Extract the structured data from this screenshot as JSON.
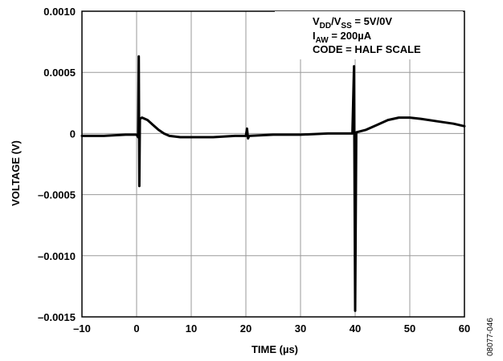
{
  "chart_data": {
    "type": "line",
    "title": "",
    "xlabel": "TIME (µs)",
    "ylabel": "VOLTAGE (V)",
    "xlim": [
      -10,
      60
    ],
    "ylim": [
      -0.0015,
      0.001
    ],
    "x_ticks": [
      -10,
      0,
      10,
      20,
      30,
      40,
      50,
      60
    ],
    "x_tick_labels": [
      "–10",
      "0",
      "10",
      "20",
      "30",
      "40",
      "50",
      "60"
    ],
    "y_ticks": [
      0.001,
      0.0005,
      0,
      -0.0005,
      -0.001,
      -0.0015
    ],
    "y_tick_labels": [
      "0.0010",
      "0.0005",
      "0",
      "–0.0005",
      "–0.0010",
      "–0.0015"
    ],
    "grid": true,
    "annotation": {
      "line1": {
        "v": "V",
        "sub1": "DD",
        "mid": "/V",
        "sub2": "SS",
        "rest": " = 5V/0V"
      },
      "line2": {
        "i": "I",
        "sub": "AW",
        "rest": " = 200µA"
      },
      "line3": "CODE = HALF SCALE"
    },
    "figure_id": "08077-046",
    "series": [
      {
        "color": "#000000",
        "points": [
          [
            -10,
            -2e-05
          ],
          [
            -6,
            -2e-05
          ],
          [
            -2,
            -1e-05
          ],
          [
            0,
            -1e-05
          ],
          [
            0.3,
            -3e-05
          ],
          [
            0.4,
            0.00063
          ],
          [
            0.5,
            -0.00043
          ],
          [
            0.6,
            0.00012
          ],
          [
            1,
            0.00013
          ],
          [
            2,
            0.00011
          ],
          [
            3,
            7e-05
          ],
          [
            4,
            3e-05
          ],
          [
            5,
            0.0
          ],
          [
            6,
            -2e-05
          ],
          [
            8,
            -3e-05
          ],
          [
            10,
            -3e-05
          ],
          [
            14,
            -3e-05
          ],
          [
            18,
            -2e-05
          ],
          [
            20,
            -2e-05
          ],
          [
            20.2,
            4e-05
          ],
          [
            20.4,
            -4e-05
          ],
          [
            20.6,
            -2e-05
          ],
          [
            25,
            -1e-05
          ],
          [
            30,
            -1e-05
          ],
          [
            35,
            0.0
          ],
          [
            39.5,
            0.0
          ],
          [
            39.8,
            0.00055
          ],
          [
            40,
            -0.00145
          ],
          [
            40.2,
            1e-05
          ],
          [
            42,
            3e-05
          ],
          [
            44,
            7e-05
          ],
          [
            46,
            0.00011
          ],
          [
            48,
            0.00013
          ],
          [
            50,
            0.00013
          ],
          [
            52,
            0.00012
          ],
          [
            55,
            0.0001
          ],
          [
            58,
            8e-05
          ],
          [
            60,
            6e-05
          ]
        ]
      }
    ]
  }
}
